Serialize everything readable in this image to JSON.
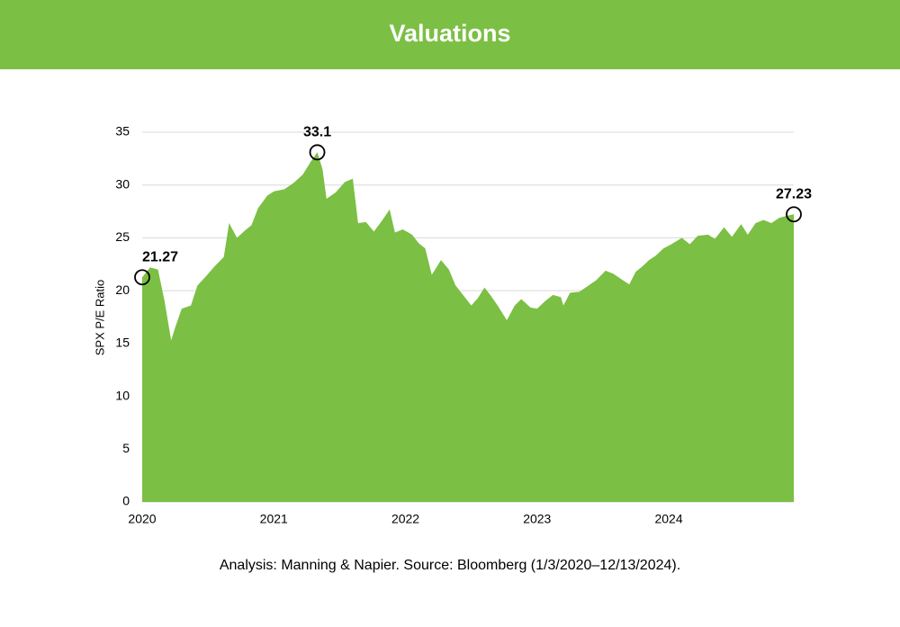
{
  "header": {
    "title": "Valuations"
  },
  "chart_data": {
    "type": "area",
    "y_label": "SPX P/E Ratio",
    "color": "#7bbf44",
    "grid": true,
    "xlim": [
      2020,
      2024.95
    ],
    "xticks": [
      2020,
      2021,
      2022,
      2023,
      2024
    ],
    "ylim": [
      0,
      35
    ],
    "yticks": [
      0,
      5,
      10,
      15,
      20,
      25,
      30,
      35
    ],
    "x": [
      2020.0,
      2020.06,
      2020.12,
      2020.17,
      2020.22,
      2020.25,
      2020.3,
      2020.37,
      2020.42,
      2020.48,
      2020.55,
      2020.62,
      2020.66,
      2020.72,
      2020.79,
      2020.83,
      2020.88,
      2020.95,
      2021.0,
      2021.08,
      2021.15,
      2021.22,
      2021.28,
      2021.33,
      2021.37,
      2021.4,
      2021.47,
      2021.54,
      2021.6,
      2021.64,
      2021.7,
      2021.76,
      2021.82,
      2021.88,
      2021.92,
      2021.98,
      2022.05,
      2022.1,
      2022.15,
      2022.2,
      2022.27,
      2022.33,
      2022.38,
      2022.45,
      2022.5,
      2022.55,
      2022.6,
      2022.65,
      2022.7,
      2022.77,
      2022.83,
      2022.88,
      2022.95,
      2023.0,
      2023.06,
      2023.12,
      2023.18,
      2023.2,
      2023.25,
      2023.32,
      2023.38,
      2023.45,
      2023.52,
      2023.58,
      2023.65,
      2023.7,
      2023.75,
      2023.8,
      2023.85,
      2023.9,
      2023.96,
      2024.02,
      2024.1,
      2024.16,
      2024.22,
      2024.3,
      2024.35,
      2024.42,
      2024.48,
      2024.55,
      2024.6,
      2024.66,
      2024.72,
      2024.78,
      2024.84,
      2024.9,
      2024.95
    ],
    "values": [
      21.27,
      22.2,
      22.0,
      19,
      15.3,
      16.5,
      18.3,
      18.6,
      20.5,
      21.3,
      22.3,
      23.2,
      26.4,
      25,
      25.8,
      26.2,
      27.8,
      29,
      29.4,
      29.6,
      30.2,
      31,
      32.2,
      33.1,
      31.5,
      28.7,
      29.3,
      30.3,
      30.6,
      26.4,
      26.5,
      25.6,
      26.6,
      27.7,
      25.5,
      25.8,
      25.3,
      24.5,
      24.0,
      21.5,
      22.9,
      22.0,
      20.5,
      19.4,
      18.6,
      19.3,
      20.3,
      19.5,
      18.6,
      17.2,
      18.6,
      19.2,
      18.4,
      18.3,
      19.0,
      19.6,
      19.4,
      18.6,
      19.8,
      19.9,
      20.4,
      21.0,
      21.9,
      21.6,
      21.0,
      20.6,
      21.8,
      22.3,
      22.9,
      23.3,
      24.0,
      24.4,
      25.0,
      24.4,
      25.2,
      25.3,
      24.9,
      26.0,
      25.1,
      26.3,
      25.3,
      26.4,
      26.7,
      26.4,
      26.9,
      27.1,
      27.23
    ],
    "annotations": [
      {
        "x": 2020.0,
        "y": 21.27
      },
      {
        "x": 2021.33,
        "y": 33.1
      },
      {
        "x": 2024.95,
        "y": 27.23
      }
    ],
    "footnote": "Analysis: Manning & Napier. Source: Bloomberg (1/3/2020–12/13/2024)."
  }
}
